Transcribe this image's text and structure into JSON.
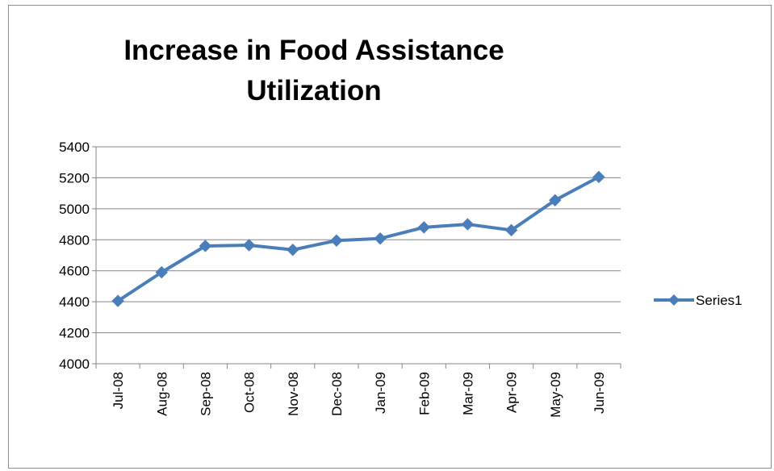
{
  "chart_data": {
    "type": "line",
    "title_line1": "Increase in Food Assistance",
    "title_line2": "Utilization",
    "categories": [
      "Jul-08",
      "Aug-08",
      "Sep-08",
      "Oct-08",
      "Nov-08",
      "Dec-08",
      "Jan-09",
      "Feb-09",
      "Mar-09",
      "Apr-09",
      "May-09",
      "Jun-09"
    ],
    "series": [
      {
        "name": "Series1",
        "values": [
          4405,
          4590,
          4760,
          4765,
          4735,
          4795,
          4808,
          4880,
          4900,
          4862,
          5055,
          5205
        ]
      }
    ],
    "ylim": [
      4000,
      5400
    ],
    "yticks": [
      4000,
      4200,
      4400,
      4600,
      4800,
      5000,
      5200,
      5400
    ],
    "grid": true,
    "legend": "right",
    "colors": {
      "series": "#4a7ebb",
      "grid": "#868686",
      "axis": "#868686"
    }
  }
}
